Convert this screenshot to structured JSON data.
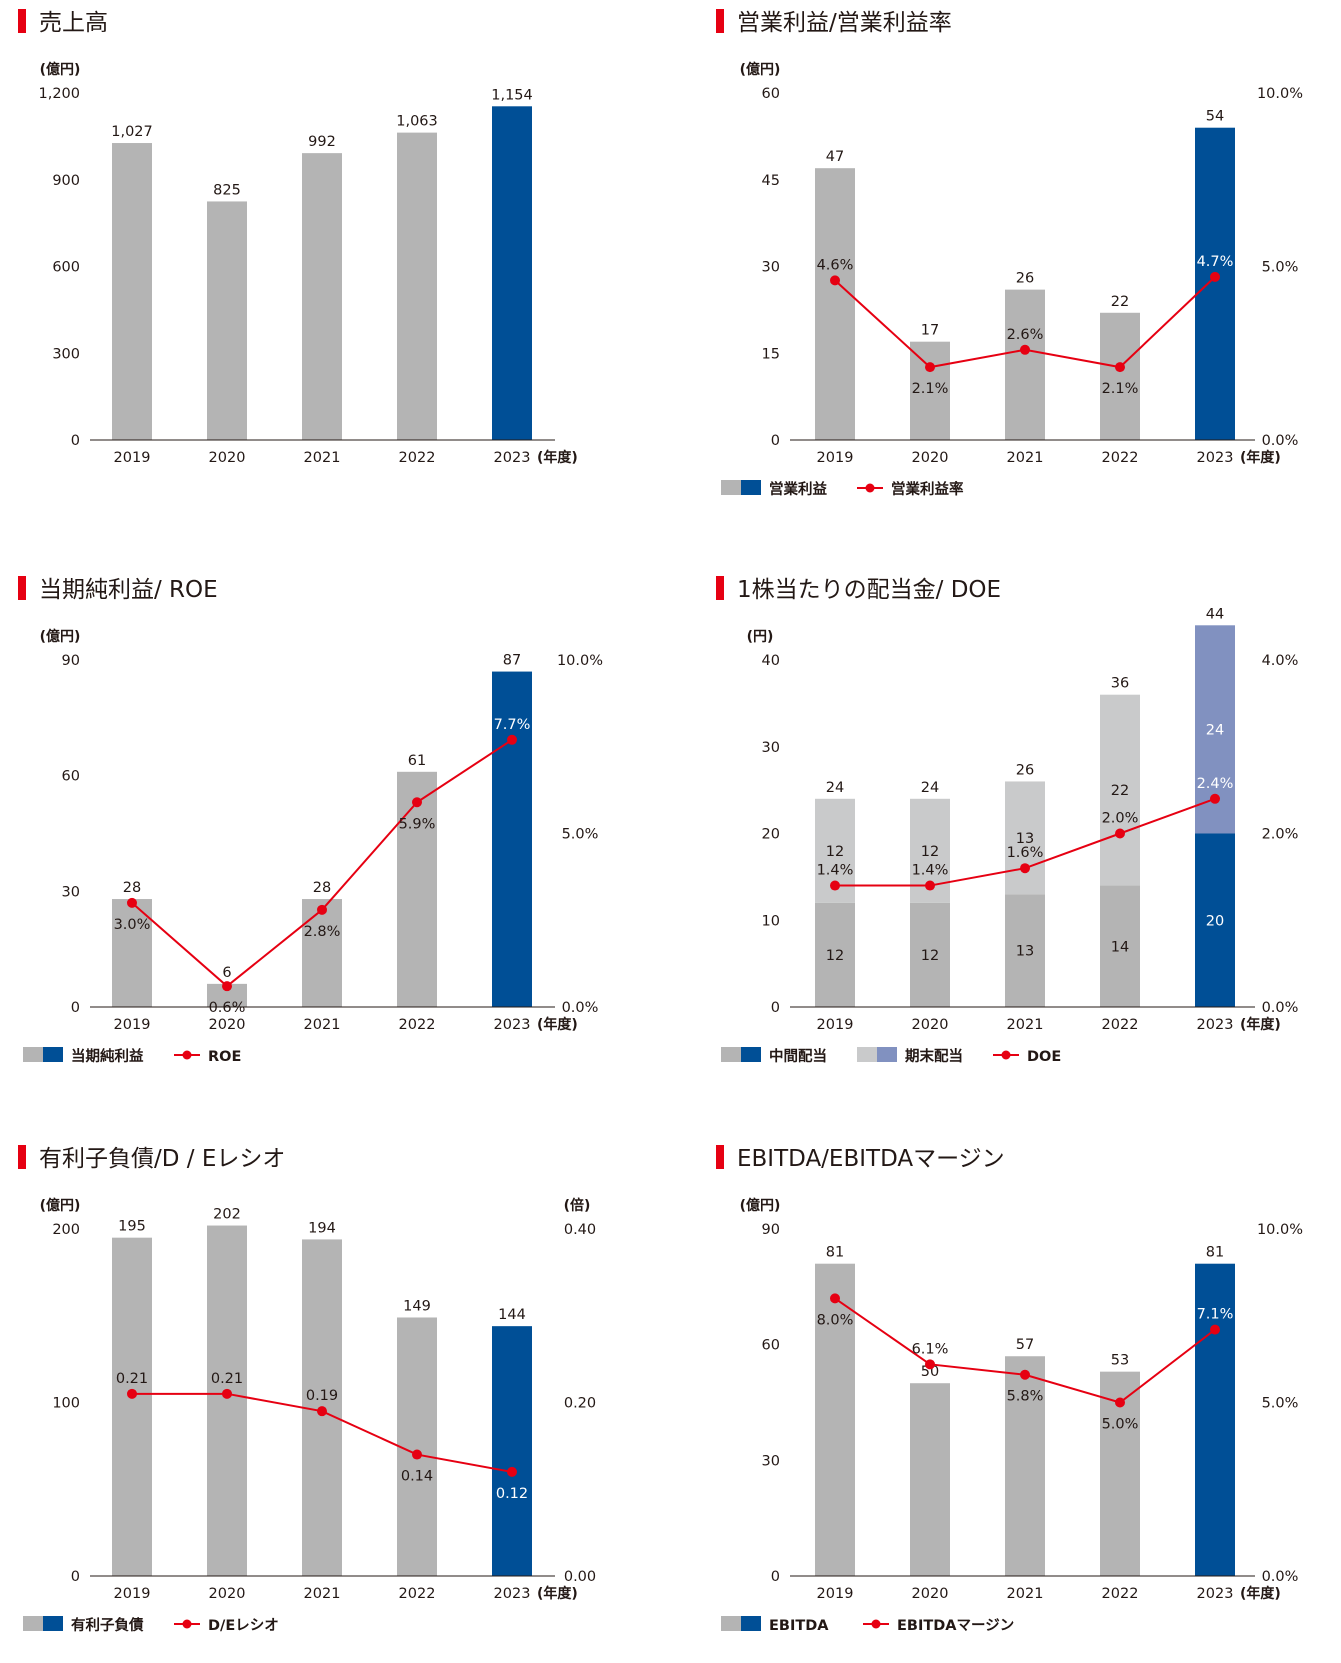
{
  "colors": {
    "accent": "#e60012",
    "bar_gray": "#b4b4b4",
    "bar_blue": "#004f96",
    "bar_lightgray": "#c9cacb",
    "bar_lavender": "#8191c0",
    "line_red": "#e60012",
    "axis": "#231815"
  },
  "chart_data": [
    {
      "id": "sales",
      "type": "bar",
      "title": "売上高",
      "left_unit": "(億円)",
      "right_unit": "",
      "x_unit": "(年度)",
      "categories": [
        "2019",
        "2020",
        "2021",
        "2022",
        "2023"
      ],
      "ylim": [
        0,
        1200
      ],
      "y_ticks": [
        "0",
        "300",
        "600",
        "900",
        "1,200"
      ],
      "series": [
        {
          "values": [
            1027,
            825,
            992,
            1063,
            1154
          ],
          "labels": [
            "1,027",
            "825",
            "992",
            "1,063",
            "1,154"
          ]
        }
      ],
      "legend": []
    },
    {
      "id": "operating",
      "type": "bar",
      "title": "営業利益/営業利益率",
      "left_unit": "(億円)",
      "right_unit": "",
      "x_unit": "(年度)",
      "categories": [
        "2019",
        "2020",
        "2021",
        "2022",
        "2023"
      ],
      "ylim": [
        0,
        60
      ],
      "y_ticks": [
        "0",
        "15",
        "30",
        "45",
        "60"
      ],
      "y2lim": [
        0,
        10
      ],
      "y2_ticks": [
        "0.0%",
        "5.0%",
        "10.0%"
      ],
      "series": [
        {
          "name": "営業利益",
          "values": [
            47,
            17,
            26,
            22,
            54
          ],
          "labels": [
            "47",
            "17",
            "26",
            "22",
            "54"
          ]
        }
      ],
      "line": {
        "name": "営業利益率",
        "values": [
          4.6,
          2.1,
          2.6,
          2.1,
          4.7
        ],
        "labels": [
          "4.6%",
          "2.1%",
          "2.6%",
          "2.1%",
          "4.7%"
        ]
      },
      "legend": [
        {
          "kind": "bar2",
          "label": "営業利益"
        },
        {
          "kind": "line",
          "label": "営業利益率"
        }
      ]
    },
    {
      "id": "net",
      "type": "bar",
      "title": "当期純利益/ ROE",
      "left_unit": "(億円)",
      "right_unit": "",
      "x_unit": "(年度)",
      "categories": [
        "2019",
        "2020",
        "2021",
        "2022",
        "2023"
      ],
      "ylim": [
        0,
        90
      ],
      "y_ticks": [
        "0",
        "30",
        "60",
        "90"
      ],
      "y2lim": [
        0,
        10
      ],
      "y2_ticks": [
        "0.0%",
        "5.0%",
        "10.0%"
      ],
      "series": [
        {
          "name": "当期純利益",
          "values": [
            28,
            6,
            28,
            61,
            87
          ],
          "labels": [
            "28",
            "6",
            "28",
            "61",
            "87"
          ]
        }
      ],
      "line": {
        "name": "ROE",
        "values": [
          3.0,
          0.6,
          2.8,
          5.9,
          7.7
        ],
        "labels": [
          "3.0%",
          "0.6%",
          "2.8%",
          "5.9%",
          "7.7%"
        ]
      },
      "legend": [
        {
          "kind": "bar2",
          "label": "当期純利益"
        },
        {
          "kind": "line",
          "label": "ROE"
        }
      ]
    },
    {
      "id": "dividend",
      "type": "bar",
      "stacked": true,
      "title": "1株当たりの配当金/ DOE",
      "left_unit": "(円)",
      "right_unit": "",
      "x_unit": "(年度)",
      "categories": [
        "2019",
        "2020",
        "2021",
        "2022",
        "2023"
      ],
      "ylim": [
        0,
        40
      ],
      "y_ticks": [
        "0",
        "10",
        "20",
        "30",
        "40"
      ],
      "y2lim": [
        0,
        4
      ],
      "y2_ticks": [
        "0.0%",
        "2.0%",
        "4.0%"
      ],
      "series": [
        {
          "name": "中間配当",
          "values": [
            12,
            12,
            13,
            14,
            20
          ],
          "labels": [
            "12",
            "12",
            "13",
            "14",
            "20"
          ]
        },
        {
          "name": "期末配当",
          "values": [
            12,
            12,
            13,
            22,
            24
          ],
          "labels": [
            "12",
            "12",
            "13",
            "22",
            "24"
          ]
        }
      ],
      "totals": [
        "24",
        "24",
        "26",
        "36",
        "44"
      ],
      "line": {
        "name": "DOE",
        "values": [
          1.4,
          1.4,
          1.6,
          2.0,
          2.4
        ],
        "labels": [
          "1.4%",
          "1.4%",
          "1.6%",
          "2.0%",
          "2.4%"
        ]
      },
      "legend": [
        {
          "kind": "bar2",
          "label": "中間配当"
        },
        {
          "kind": "bar2b",
          "label": "期末配当"
        },
        {
          "kind": "line",
          "label": "DOE"
        }
      ]
    },
    {
      "id": "debt",
      "type": "bar",
      "title": "有利子負債/D / Eレシオ",
      "left_unit": "(億円)",
      "right_unit": "(倍)",
      "x_unit": "(年度)",
      "categories": [
        "2019",
        "2020",
        "2021",
        "2022",
        "2023"
      ],
      "ylim": [
        0,
        200
      ],
      "y_ticks": [
        "0",
        "100",
        "200"
      ],
      "y2lim": [
        0,
        0.4
      ],
      "y2_ticks": [
        "0.00",
        "0.20",
        "0.40"
      ],
      "series": [
        {
          "name": "有利子負債",
          "values": [
            195,
            202,
            194,
            149,
            144
          ],
          "labels": [
            "195",
            "202",
            "194",
            "149",
            "144"
          ]
        }
      ],
      "line": {
        "name": "D/Eレシオ",
        "values": [
          0.21,
          0.21,
          0.19,
          0.14,
          0.12
        ],
        "labels": [
          "0.21",
          "0.21",
          "0.19",
          "0.14",
          "0.12"
        ]
      },
      "legend": [
        {
          "kind": "bar2",
          "label": "有利子負債"
        },
        {
          "kind": "line",
          "label": "D/Eレシオ"
        }
      ]
    },
    {
      "id": "ebitda",
      "type": "bar",
      "title": "EBITDA/EBITDAマージン",
      "left_unit": "(億円)",
      "right_unit": "",
      "x_unit": "(年度)",
      "categories": [
        "2019",
        "2020",
        "2021",
        "2022",
        "2023"
      ],
      "ylim": [
        0,
        90
      ],
      "y_ticks": [
        "0",
        "30",
        "60",
        "90"
      ],
      "y2lim": [
        0,
        10
      ],
      "y2_ticks": [
        "0.0%",
        "5.0%",
        "10.0%"
      ],
      "series": [
        {
          "name": "EBITDA",
          "values": [
            81,
            50,
            57,
            53,
            81
          ],
          "labels": [
            "81",
            "50",
            "57",
            "53",
            "81"
          ]
        }
      ],
      "line": {
        "name": "EBITDAマージン",
        "values": [
          8.0,
          6.1,
          5.8,
          5.0,
          7.1
        ],
        "labels": [
          "8.0%",
          "6.1%",
          "5.8%",
          "5.0%",
          "7.1%"
        ]
      },
      "legend": [
        {
          "kind": "bar2",
          "label": "EBITDA"
        },
        {
          "kind": "line",
          "label": "EBITDAマージン"
        }
      ]
    }
  ]
}
